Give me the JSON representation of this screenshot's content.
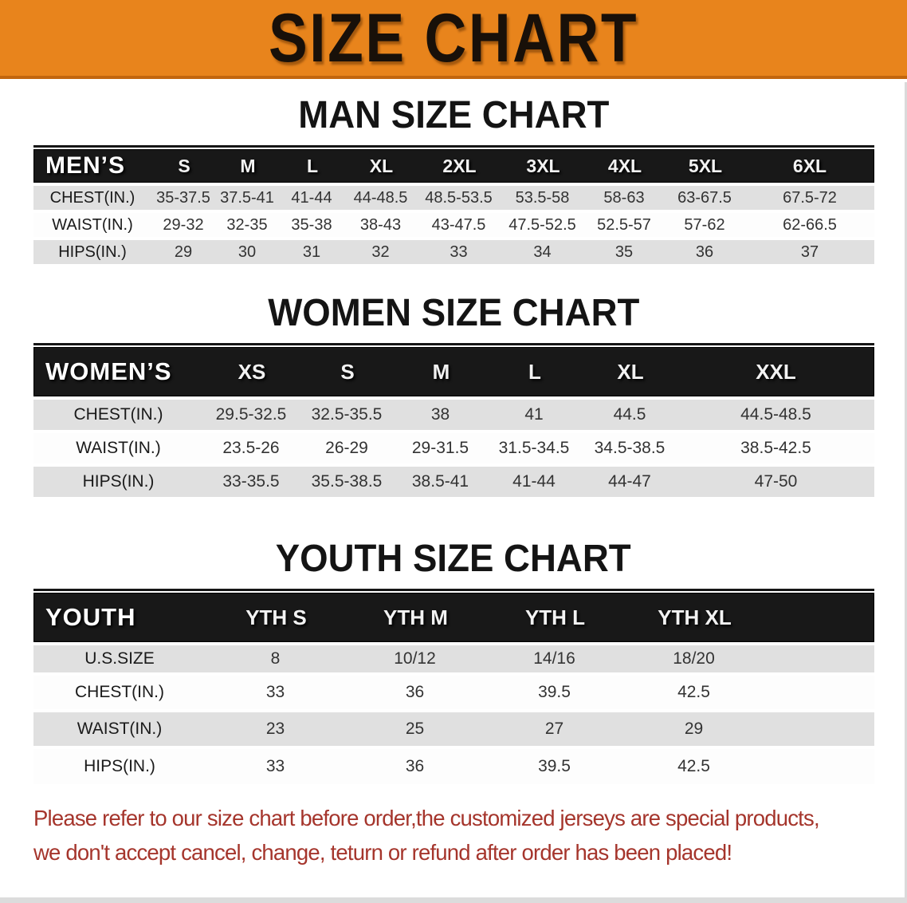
{
  "banner": {
    "title": "SIZE CHART"
  },
  "colors": {
    "banner_bg": "#e8841c",
    "banner_edge": "#c2660e",
    "table_header_bg": "#181818",
    "row_gray": "#e0e0e0",
    "disclaimer_red": "#a5352c"
  },
  "sections": [
    {
      "heading": "MAN SIZE CHART",
      "table": {
        "group_label": "MEN’S",
        "columns": [
          "S",
          "M",
          "L",
          "XL",
          "2XL",
          "3XL",
          "4XL",
          "5XL",
          "6XL"
        ],
        "rows": [
          {
            "label": "CHEST(IN.)",
            "values": [
              "35-37.5",
              "37.5-41",
              "41-44",
              "44-48.5",
              "48.5-53.5",
              "53.5-58",
              "58-63",
              "63-67.5",
              "67.5-72"
            ]
          },
          {
            "label": "WAIST(IN.)",
            "values": [
              "29-32",
              "32-35",
              "35-38",
              "38-43",
              "43-47.5",
              "47.5-52.5",
              "52.5-57",
              "57-62",
              "62-66.5"
            ]
          },
          {
            "label": "HIPS(IN.)",
            "values": [
              "29",
              "30",
              "31",
              "32",
              "33",
              "34",
              "35",
              "36",
              "37"
            ]
          }
        ]
      }
    },
    {
      "heading": "WOMEN SIZE CHART",
      "table": {
        "group_label": "WOMEN’S",
        "columns": [
          "XS",
          "S",
          "M",
          "L",
          "XL",
          "XXL"
        ],
        "rows": [
          {
            "label": "CHEST(IN.)",
            "values": [
              "29.5-32.5",
              "32.5-35.5",
              "38",
              "41",
              "44.5",
              "44.5-48.5"
            ]
          },
          {
            "label": "WAIST(IN.)",
            "values": [
              "23.5-26",
              "26-29",
              "29-31.5",
              "31.5-34.5",
              "34.5-38.5",
              "38.5-42.5"
            ]
          },
          {
            "label": "HIPS(IN.)",
            "values": [
              "33-35.5",
              "35.5-38.5",
              "38.5-41",
              "41-44",
              "44-47",
              "47-50"
            ]
          }
        ]
      }
    },
    {
      "heading": "YOUTH SIZE CHART",
      "table": {
        "group_label": "YOUTH",
        "columns": [
          "YTH S",
          "YTH M",
          "YTH L",
          "YTH XL"
        ],
        "rows": [
          {
            "label": "U.S.SIZE",
            "values": [
              "8",
              "10/12",
              "14/16",
              "18/20"
            ]
          },
          {
            "label": "CHEST(IN.)",
            "values": [
              "33",
              "36",
              "39.5",
              "42.5"
            ]
          },
          {
            "label": "WAIST(IN.)",
            "values": [
              "23",
              "25",
              "27",
              "29"
            ]
          },
          {
            "label": "HIPS(IN.)",
            "values": [
              "33",
              "36",
              "39.5",
              "42.5"
            ]
          }
        ]
      }
    }
  ],
  "disclaimer": {
    "line1": "Please refer to our size chart before order,the customized jerseys are special products,",
    "line2": "we don't accept cancel, change, teturn or refund after order has been placed!"
  }
}
